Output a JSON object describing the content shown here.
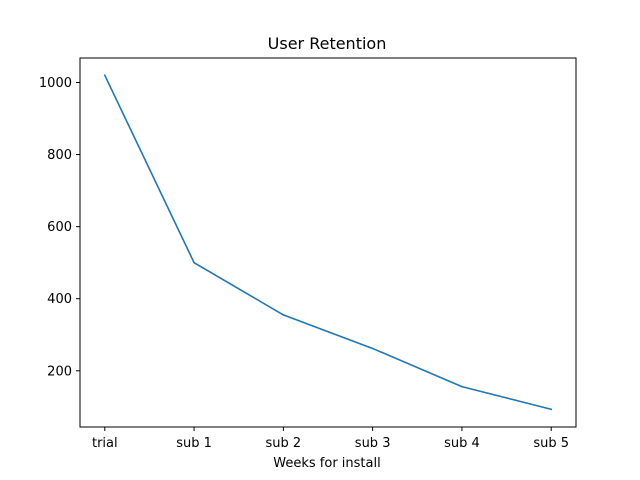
{
  "chart_data": {
    "type": "line",
    "title": "User Retention",
    "xlabel": "Weeks for install",
    "ylabel": "",
    "categories": [
      "trial",
      "sub 1",
      "sub 2",
      "sub 3",
      "sub 4",
      "sub 5"
    ],
    "series": [
      {
        "values": [
          1020,
          500,
          355,
          262,
          156,
          93
        ],
        "color": "#1f77b4"
      }
    ],
    "ylim": [
      44,
      1068
    ],
    "yticks": [
      200,
      400,
      600,
      800,
      1000
    ],
    "grid": false,
    "legend": "none"
  }
}
